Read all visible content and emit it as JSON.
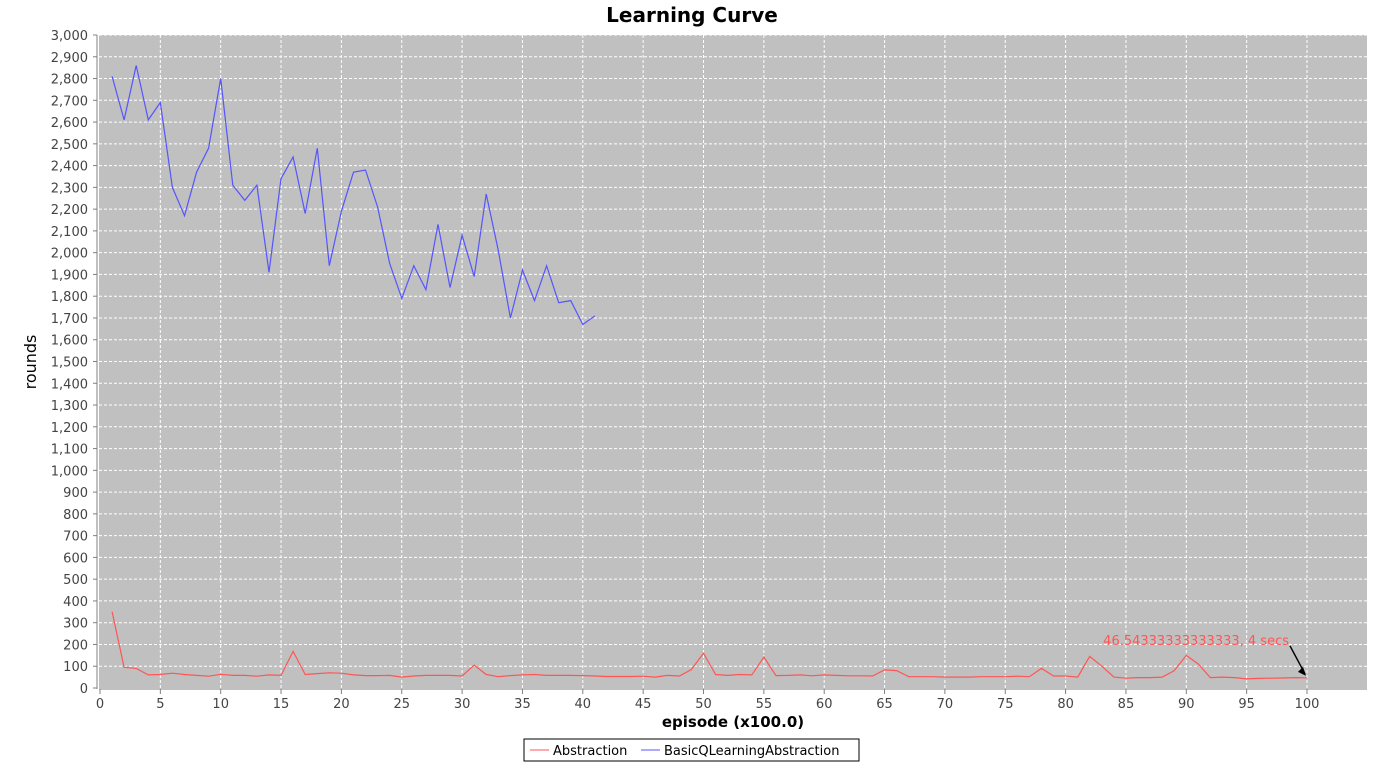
{
  "chart_data": {
    "type": "line",
    "title": "Learning Curve",
    "xlabel": "episode (x100.0)",
    "ylabel": "rounds",
    "xlim": [
      0,
      105
    ],
    "ylim": [
      0,
      3000
    ],
    "x_ticks": [
      0,
      5,
      10,
      15,
      20,
      25,
      30,
      35,
      40,
      45,
      50,
      55,
      60,
      65,
      70,
      75,
      80,
      85,
      90,
      95,
      100
    ],
    "y_ticks": [
      0,
      100,
      200,
      300,
      400,
      500,
      600,
      700,
      800,
      900,
      1000,
      1100,
      1200,
      1300,
      1400,
      1500,
      1600,
      1700,
      1800,
      1900,
      2000,
      2100,
      2200,
      2300,
      2400,
      2500,
      2600,
      2700,
      2800,
      2900,
      3000
    ],
    "y_tick_labels": [
      "0",
      "100",
      "200",
      "300",
      "400",
      "500",
      "600",
      "700",
      "800",
      "900",
      "1,000",
      "1,100",
      "1,200",
      "1,300",
      "1,400",
      "1,500",
      "1,600",
      "1,700",
      "1,800",
      "1,900",
      "2,000",
      "2,100",
      "2,200",
      "2,300",
      "2,400",
      "2,500",
      "2,600",
      "2,700",
      "2,800",
      "2,900",
      "3,000"
    ],
    "grid": true,
    "plot_background": "#c0c0c0",
    "legend_position": "bottom",
    "series": [
      {
        "name": "Abstraction",
        "color": "#ff5555",
        "x": [
          1,
          2,
          3,
          4,
          5,
          6,
          7,
          8,
          9,
          10,
          11,
          12,
          13,
          14,
          15,
          16,
          17,
          18,
          19,
          20,
          21,
          22,
          23,
          24,
          25,
          26,
          27,
          28,
          29,
          30,
          31,
          32,
          33,
          34,
          35,
          36,
          37,
          38,
          39,
          40,
          41,
          42,
          43,
          44,
          45,
          46,
          47,
          48,
          49,
          50,
          51,
          52,
          53,
          54,
          55,
          56,
          57,
          58,
          59,
          60,
          61,
          62,
          63,
          64,
          65,
          66,
          67,
          68,
          69,
          70,
          71,
          72,
          73,
          74,
          75,
          76,
          77,
          78,
          79,
          80,
          81,
          82,
          83,
          84,
          85,
          86,
          87,
          88,
          89,
          90,
          91,
          92,
          93,
          94,
          95,
          96,
          97,
          98,
          99,
          100
        ],
        "values": [
          350,
          95,
          90,
          60,
          62,
          68,
          62,
          58,
          54,
          63,
          58,
          58,
          54,
          60,
          58,
          168,
          62,
          66,
          70,
          68,
          60,
          57,
          57,
          58,
          50,
          55,
          58,
          58,
          58,
          55,
          105,
          62,
          52,
          57,
          60,
          62,
          58,
          58,
          58,
          57,
          55,
          53,
          53,
          53,
          54,
          50,
          58,
          55,
          85,
          160,
          62,
          58,
          62,
          60,
          142,
          57,
          58,
          60,
          56,
          60,
          58,
          56,
          56,
          55,
          83,
          80,
          52,
          52,
          52,
          50,
          50,
          50,
          52,
          52,
          52,
          54,
          52,
          90,
          55,
          55,
          50,
          145,
          100,
          50,
          45,
          48,
          48,
          50,
          80,
          150,
          110,
          48,
          50,
          48,
          42,
          44,
          45,
          46,
          48,
          47
        ]
      },
      {
        "name": "BasicQLearningAbstraction",
        "color": "#5555ff",
        "x": [
          1,
          2,
          3,
          4,
          5,
          6,
          7,
          8,
          9,
          10,
          11,
          12,
          13,
          14,
          15,
          16,
          17,
          18,
          19,
          20,
          21,
          22,
          23,
          24,
          25,
          26,
          27,
          28,
          29,
          30,
          31,
          32,
          33,
          34,
          35,
          36,
          37,
          38,
          39,
          40,
          41
        ],
        "values": [
          2810,
          2610,
          2860,
          2610,
          2690,
          2300,
          2170,
          2370,
          2480,
          2800,
          2310,
          2240,
          2310,
          1910,
          2340,
          2440,
          2180,
          2480,
          1940,
          2190,
          2370,
          2380,
          2210,
          1950,
          1790,
          1940,
          1830,
          2130,
          1840,
          2080,
          1890,
          2270,
          2010,
          1700,
          1920,
          1780,
          1940,
          1770,
          1780,
          1670,
          1710
        ]
      }
    ],
    "annotation": {
      "text": "46.54333333333333, 4 secs",
      "x": 100,
      "y": 46.5,
      "color": "#ff5555"
    },
    "x_tick_interval": 5
  }
}
